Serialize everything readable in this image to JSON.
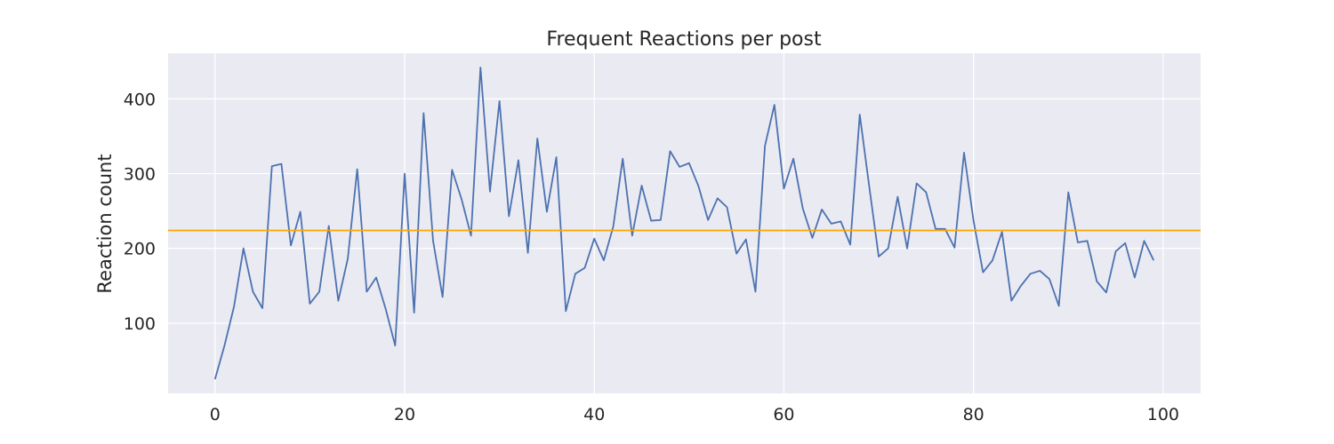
{
  "chart_data": {
    "type": "line",
    "title": "Frequent Reactions per post",
    "xlabel": "",
    "ylabel": "Reaction count",
    "xlim": [
      -4.95,
      103.95
    ],
    "ylim": [
      6,
      461
    ],
    "xticks": [
      0,
      20,
      40,
      60,
      80,
      100
    ],
    "yticks": [
      100,
      200,
      300,
      400
    ],
    "grid": true,
    "legend": "none",
    "colors": {
      "background": "#eaeaf2",
      "grid": "#ffffff",
      "series": "#4c72b0",
      "reference": "#ffa500"
    },
    "x": [
      0,
      1,
      2,
      3,
      4,
      5,
      6,
      7,
      8,
      9,
      10,
      11,
      12,
      13,
      14,
      15,
      16,
      17,
      18,
      19,
      20,
      21,
      22,
      23,
      24,
      25,
      26,
      27,
      28,
      29,
      30,
      31,
      32,
      33,
      34,
      35,
      36,
      37,
      38,
      39,
      40,
      41,
      42,
      43,
      44,
      45,
      46,
      47,
      48,
      49,
      50,
      51,
      52,
      53,
      54,
      55,
      56,
      57,
      58,
      59,
      60,
      61,
      62,
      63,
      64,
      65,
      66,
      67,
      68,
      69,
      70,
      71,
      72,
      73,
      74,
      75,
      76,
      77,
      78,
      79,
      80,
      81,
      82,
      83,
      84,
      85,
      86,
      87,
      88,
      89,
      90,
      91,
      92,
      93,
      94,
      95,
      96,
      97,
      98,
      99
    ],
    "series": [
      {
        "values": [
          25,
          70,
          122,
          200,
          142,
          120,
          310,
          313,
          204,
          249,
          126,
          142,
          230,
          130,
          186,
          306,
          142,
          161,
          119,
          70,
          300,
          114,
          381,
          210,
          135,
          305,
          266,
          217,
          442,
          276,
          397,
          243,
          318,
          194,
          347,
          249,
          322,
          116,
          166,
          174,
          213,
          184,
          229,
          320,
          217,
          284,
          237,
          238,
          330,
          309,
          314,
          283,
          238,
          267,
          255,
          193,
          212,
          142,
          337,
          392,
          280,
          320,
          253,
          214,
          252,
          233,
          236,
          205,
          379,
          283,
          189,
          200,
          269,
          200,
          287,
          275,
          226,
          226,
          201,
          328,
          237,
          168,
          184,
          222,
          130,
          150,
          166,
          170,
          159,
          123,
          275,
          208,
          210,
          156,
          141,
          196,
          207,
          161,
          210,
          184
        ]
      }
    ],
    "reference_line": {
      "y": 224
    }
  }
}
